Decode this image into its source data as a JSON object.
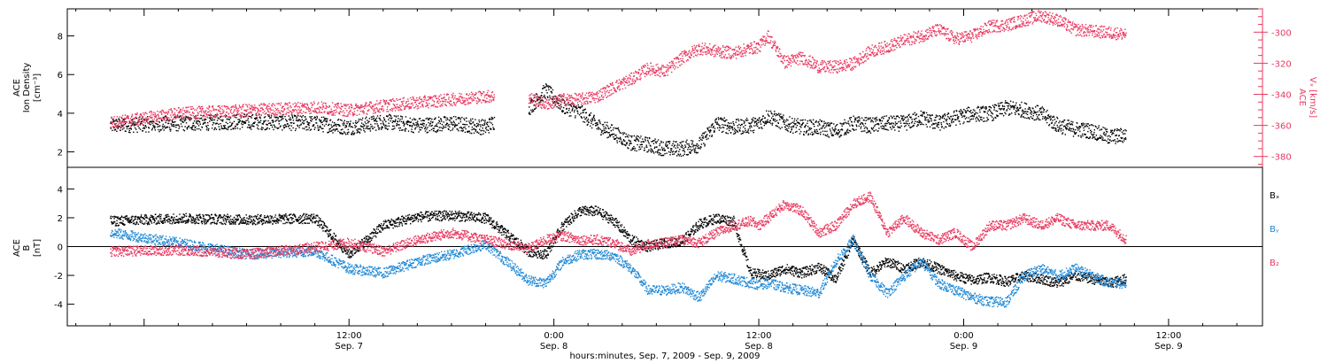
{
  "colors": {
    "black": "#000000",
    "red": "#e8385f",
    "blue": "#1e88d6",
    "frame": "#000000"
  },
  "x_axis": {
    "title": "hours:minutes, Sep.  7, 2009 - Sep.  9, 2009",
    "range_hours": [
      -4.5,
      65.5
    ],
    "ticks": [
      {
        "hour": 12,
        "time": "12:00",
        "date": "Sep. 7"
      },
      {
        "hour": 24,
        "time": "0:00",
        "date": "Sep. 8"
      },
      {
        "hour": 36,
        "time": "12:00",
        "date": "Sep. 8"
      },
      {
        "hour": 48,
        "time": "0:00",
        "date": "Sep. 9"
      },
      {
        "hour": 60,
        "time": "12:00",
        "date": "Sep. 9"
      }
    ]
  },
  "chart_data": [
    {
      "type": "scatter",
      "panel": "top",
      "left_axis": {
        "label_lines": [
          "ACE",
          "Ion Density",
          "[cm⁻³]"
        ],
        "ylim": [
          1.2,
          9.4
        ],
        "ticks": [
          2,
          4,
          6,
          8
        ]
      },
      "right_axis": {
        "label_lines": [
          "ACE",
          "Vₓ [km/s]"
        ],
        "ylim": [
          -387,
          -285
        ],
        "ticks": [
          -380,
          -360,
          -340,
          -320,
          -300
        ]
      },
      "series": [
        {
          "color_key": "black",
          "axis": "left",
          "points": [
            [
              -2,
              3.4
            ],
            [
              2,
              3.5
            ],
            [
              6,
              3.6
            ],
            [
              10,
              3.5
            ],
            [
              12,
              3.3
            ],
            [
              14,
              3.6
            ],
            [
              16,
              3.4
            ],
            [
              18,
              3.5
            ],
            [
              20,
              3.3
            ],
            [
              20.5,
              3.6
            ],
            [
              22.5,
              4.3
            ],
            [
              23.5,
              5.2
            ],
            [
              24.5,
              4.4
            ],
            [
              25.5,
              4.1
            ],
            [
              26.5,
              3.4
            ],
            [
              27.5,
              3.0
            ],
            [
              28.5,
              2.5
            ],
            [
              29.5,
              2.4
            ],
            [
              30.5,
              2.2
            ],
            [
              31.5,
              2.2
            ],
            [
              32.5,
              2.4
            ],
            [
              33.5,
              3.5
            ],
            [
              34.5,
              3.3
            ],
            [
              35.5,
              3.4
            ],
            [
              36,
              3.5
            ],
            [
              36.5,
              3.9
            ],
            [
              37.5,
              3.5
            ],
            [
              38.5,
              3.3
            ],
            [
              39.5,
              3.3
            ],
            [
              40.5,
              3.1
            ],
            [
              41.5,
              3.5
            ],
            [
              42.5,
              3.4
            ],
            [
              43.5,
              3.5
            ],
            [
              44.5,
              3.5
            ],
            [
              45.5,
              3.8
            ],
            [
              46.5,
              3.5
            ],
            [
              47.5,
              3.8
            ],
            [
              48.5,
              4.0
            ],
            [
              49.5,
              4.0
            ],
            [
              50.5,
              4.3
            ],
            [
              51.5,
              4.2
            ],
            [
              52.5,
              4.0
            ],
            [
              53.5,
              3.4
            ],
            [
              54.5,
              3.2
            ],
            [
              55.5,
              3.1
            ],
            [
              56.5,
              2.8
            ],
            [
              57.5,
              2.9
            ]
          ]
        },
        {
          "color_key": "red",
          "axis": "right",
          "points": [
            [
              -2,
              -358
            ],
            [
              2,
              -352
            ],
            [
              6,
              -350
            ],
            [
              10,
              -348
            ],
            [
              12,
              -350
            ],
            [
              14,
              -347
            ],
            [
              16,
              -345
            ],
            [
              18,
              -343
            ],
            [
              20,
              -341
            ],
            [
              20.5,
              -341
            ],
            [
              22.5,
              -342
            ],
            [
              23.5,
              -346
            ],
            [
              24.5,
              -343
            ],
            [
              25.5,
              -343
            ],
            [
              26.5,
              -341
            ],
            [
              27.5,
              -335
            ],
            [
              28.5,
              -330
            ],
            [
              29.5,
              -323
            ],
            [
              30.5,
              -325
            ],
            [
              31.5,
              -316
            ],
            [
              32.5,
              -310
            ],
            [
              33.5,
              -312
            ],
            [
              34.5,
              -313
            ],
            [
              35.5,
              -310
            ],
            [
              36,
              -309
            ],
            [
              36.5,
              -302
            ],
            [
              37.5,
              -319
            ],
            [
              38.5,
              -316
            ],
            [
              39.5,
              -322
            ],
            [
              40.5,
              -322
            ],
            [
              41.5,
              -320
            ],
            [
              42.5,
              -312
            ],
            [
              43.5,
              -309
            ],
            [
              44.5,
              -305
            ],
            [
              45.5,
              -302
            ],
            [
              46.5,
              -298
            ],
            [
              47.5,
              -304
            ],
            [
              48.5,
              -302
            ],
            [
              49.5,
              -296
            ],
            [
              50.5,
              -295
            ],
            [
              51.5,
              -292
            ],
            [
              52.5,
              -289
            ],
            [
              53.5,
              -292
            ],
            [
              54.5,
              -298
            ],
            [
              55.5,
              -299
            ],
            [
              56.5,
              -300
            ],
            [
              57.5,
              -301
            ]
          ]
        }
      ]
    },
    {
      "type": "scatter",
      "panel": "bottom",
      "left_axis": {
        "label_lines": [
          "ACE",
          "B",
          "[nT]"
        ],
        "ylim": [
          -5.5,
          5.5
        ],
        "ticks": [
          -4,
          -2,
          0,
          2,
          4
        ],
        "zero_line": true
      },
      "legend": {
        "placement": "right",
        "entries": [
          {
            "label": "Bₓ",
            "color_key": "black"
          },
          {
            "label": "Bᵧ",
            "color_key": "blue"
          },
          {
            "label": "B₂",
            "color_key": "red"
          }
        ]
      },
      "series": [
        {
          "name": "Bₓ",
          "color_key": "black",
          "points": [
            [
              -2,
              1.8
            ],
            [
              2,
              2.0
            ],
            [
              6,
              1.9
            ],
            [
              10,
              2.0
            ],
            [
              12,
              -0.5
            ],
            [
              14,
              1.5
            ],
            [
              16,
              2.1
            ],
            [
              18,
              2.2
            ],
            [
              20,
              2.0
            ],
            [
              22.5,
              -0.3
            ],
            [
              23.5,
              -0.5
            ],
            [
              24.5,
              1.5
            ],
            [
              25.5,
              2.5
            ],
            [
              26.5,
              2.5
            ],
            [
              27.5,
              1.8
            ],
            [
              28.5,
              0.5
            ],
            [
              29.5,
              0.0
            ],
            [
              30.5,
              0.3
            ],
            [
              31.5,
              0.4
            ],
            [
              32.5,
              1.6
            ],
            [
              33.5,
              2.0
            ],
            [
              34.5,
              1.8
            ],
            [
              35.5,
              -1.8
            ],
            [
              36,
              -1.9
            ],
            [
              36.5,
              -2.0
            ],
            [
              37.5,
              -1.5
            ],
            [
              38.5,
              -1.8
            ],
            [
              39.5,
              -1.4
            ],
            [
              40.5,
              -2.2
            ],
            [
              41.5,
              0.5
            ],
            [
              42.5,
              -1.8
            ],
            [
              43.5,
              -1.0
            ],
            [
              44.5,
              -1.5
            ],
            [
              45.5,
              -1.0
            ],
            [
              46.5,
              -1.5
            ],
            [
              47.5,
              -2.0
            ],
            [
              48.5,
              -2.3
            ],
            [
              49.5,
              -2.1
            ],
            [
              50.5,
              -2.4
            ],
            [
              51.5,
              -2.0
            ],
            [
              52.5,
              -2.2
            ],
            [
              53.5,
              -2.5
            ],
            [
              54.5,
              -2.0
            ],
            [
              55.5,
              -2.2
            ],
            [
              56.5,
              -2.5
            ],
            [
              57.5,
              -2.2
            ]
          ]
        },
        {
          "name": "Bᵧ",
          "color_key": "blue",
          "points": [
            [
              -2,
              1.0
            ],
            [
              2,
              0.3
            ],
            [
              6,
              -0.5
            ],
            [
              10,
              -0.3
            ],
            [
              12,
              -1.5
            ],
            [
              14,
              -1.8
            ],
            [
              16,
              -1.0
            ],
            [
              18,
              -0.5
            ],
            [
              20,
              0.2
            ],
            [
              22.5,
              -2.3
            ],
            [
              23.5,
              -2.5
            ],
            [
              24.5,
              -1.0
            ],
            [
              25.5,
              -0.5
            ],
            [
              26.5,
              -0.5
            ],
            [
              27.5,
              -0.6
            ],
            [
              28.5,
              -1.5
            ],
            [
              29.5,
              -3.0
            ],
            [
              30.5,
              -3.0
            ],
            [
              31.5,
              -2.8
            ],
            [
              32.5,
              -3.5
            ],
            [
              33.5,
              -2.0
            ],
            [
              34.5,
              -2.2
            ],
            [
              35.5,
              -2.5
            ],
            [
              36,
              -2.6
            ],
            [
              36.5,
              -2.5
            ],
            [
              37.5,
              -2.8
            ],
            [
              38.5,
              -3.0
            ],
            [
              39.5,
              -3.2
            ],
            [
              40.5,
              -1.0
            ],
            [
              41.5,
              0.5
            ],
            [
              42.5,
              -2.0
            ],
            [
              43.5,
              -3.2
            ],
            [
              44.5,
              -2.0
            ],
            [
              45.5,
              -1.0
            ],
            [
              46.5,
              -2.5
            ],
            [
              47.5,
              -3.0
            ],
            [
              48.5,
              -3.5
            ],
            [
              49.5,
              -3.8
            ],
            [
              50.5,
              -3.8
            ],
            [
              51.5,
              -2.0
            ],
            [
              52.5,
              -1.5
            ],
            [
              53.5,
              -2.0
            ],
            [
              54.5,
              -1.5
            ],
            [
              55.5,
              -2.0
            ],
            [
              56.5,
              -2.5
            ],
            [
              57.5,
              -2.5
            ]
          ]
        },
        {
          "name": "B₂",
          "color_key": "red",
          "points": [
            [
              -2,
              -0.3
            ],
            [
              2,
              -0.2
            ],
            [
              6,
              -0.5
            ],
            [
              10,
              0.0
            ],
            [
              12,
              0.3
            ],
            [
              14,
              -0.3
            ],
            [
              16,
              0.5
            ],
            [
              18,
              1.0
            ],
            [
              20,
              0.5
            ],
            [
              22.5,
              -0.1
            ],
            [
              23.5,
              0.5
            ],
            [
              24.5,
              0.8
            ],
            [
              25.5,
              0.5
            ],
            [
              26.5,
              0.5
            ],
            [
              27.5,
              0.3
            ],
            [
              28.5,
              -0.3
            ],
            [
              29.5,
              0.2
            ],
            [
              30.5,
              0.3
            ],
            [
              31.5,
              0.5
            ],
            [
              32.5,
              0.3
            ],
            [
              33.5,
              1.0
            ],
            [
              34.5,
              1.5
            ],
            [
              35.5,
              1.8
            ],
            [
              36,
              1.5
            ],
            [
              36.5,
              2.0
            ],
            [
              37.5,
              3.0
            ],
            [
              38.5,
              2.5
            ],
            [
              39.5,
              1.0
            ],
            [
              40.5,
              1.5
            ],
            [
              41.5,
              3.0
            ],
            [
              42.5,
              3.5
            ],
            [
              43.5,
              1.0
            ],
            [
              44.5,
              2.0
            ],
            [
              45.5,
              1.0
            ],
            [
              46.5,
              0.5
            ],
            [
              47.5,
              1.0
            ],
            [
              48.5,
              0.0
            ],
            [
              49.5,
              1.5
            ],
            [
              50.5,
              1.5
            ],
            [
              51.5,
              2.0
            ],
            [
              52.5,
              1.5
            ],
            [
              53.5,
              2.0
            ],
            [
              54.5,
              1.5
            ],
            [
              55.5,
              1.5
            ],
            [
              56.5,
              1.5
            ],
            [
              57.5,
              0.5
            ]
          ]
        }
      ]
    }
  ]
}
